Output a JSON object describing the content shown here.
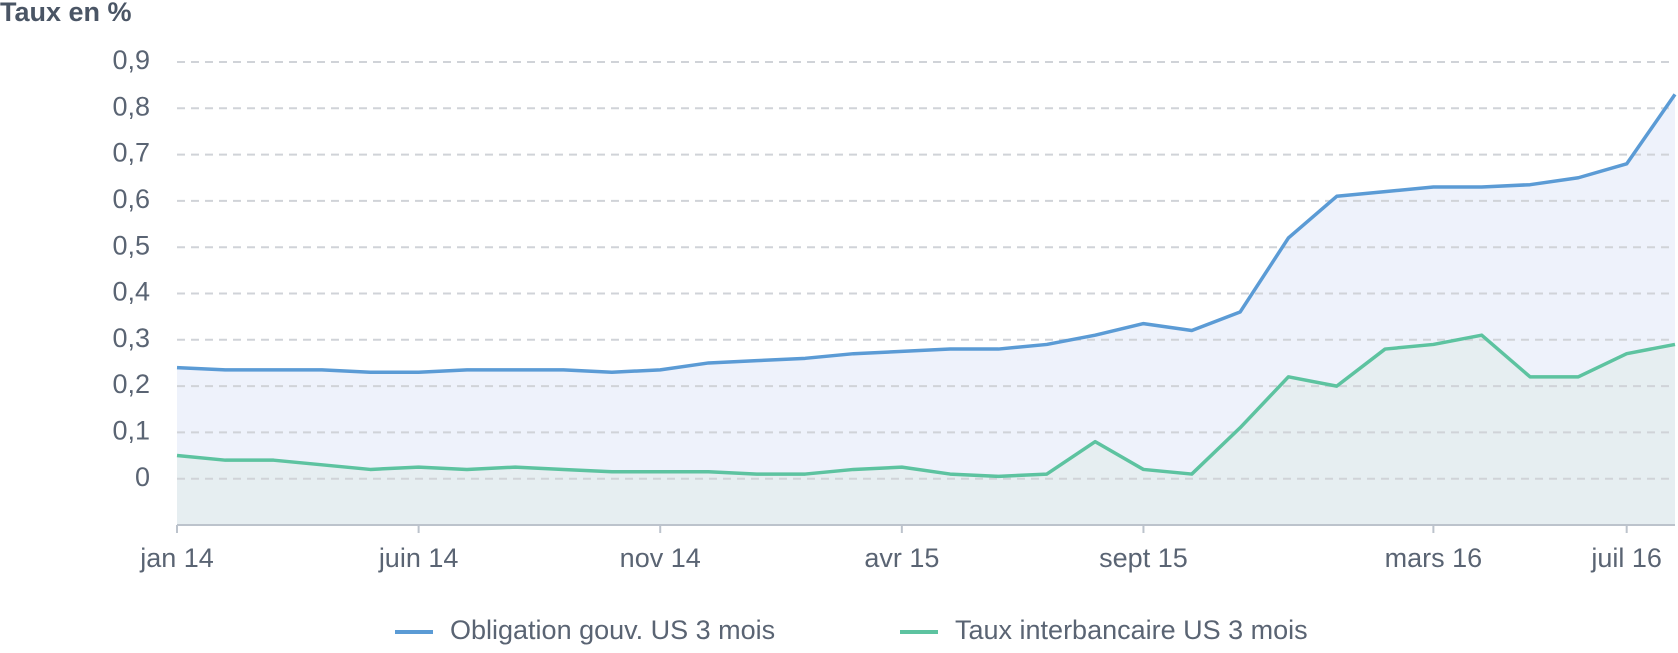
{
  "chart_data": {
    "type": "line",
    "y_label": "Taux en %",
    "x": [
      "2014-01",
      "2014-02",
      "2014-03",
      "2014-04",
      "2014-05",
      "2014-06",
      "2014-07",
      "2014-08",
      "2014-09",
      "2014-10",
      "2014-11",
      "2014-12",
      "2015-01",
      "2015-02",
      "2015-03",
      "2015-04",
      "2015-05",
      "2015-06",
      "2015-07",
      "2015-08",
      "2015-09",
      "2015-10",
      "2015-11",
      "2015-12",
      "2016-01",
      "2016-02",
      "2016-03",
      "2016-04",
      "2016-05",
      "2016-06",
      "2016-07",
      "2016-08"
    ],
    "series": [
      {
        "name": "Obligation gouv. US 3 mois",
        "color": "#5b9bd5",
        "area_color": "#eef2fb",
        "values": [
          0.24,
          0.235,
          0.235,
          0.235,
          0.23,
          0.23,
          0.235,
          0.235,
          0.235,
          0.23,
          0.235,
          0.25,
          0.255,
          0.26,
          0.27,
          0.275,
          0.28,
          0.28,
          0.29,
          0.31,
          0.335,
          0.32,
          0.36,
          0.52,
          0.61,
          0.62,
          0.63,
          0.63,
          0.635,
          0.65,
          0.68,
          0.83
        ]
      },
      {
        "name": "Taux interbancaire US 3 mois",
        "color": "#5dc3a0",
        "area_color": "#e4ecef",
        "values": [
          0.05,
          0.04,
          0.04,
          0.03,
          0.02,
          0.025,
          0.02,
          0.025,
          0.02,
          0.015,
          0.015,
          0.015,
          0.01,
          0.01,
          0.02,
          0.025,
          0.01,
          0.005,
          0.01,
          0.08,
          0.02,
          0.01,
          0.11,
          0.22,
          0.2,
          0.28,
          0.29,
          0.31,
          0.22,
          0.22,
          0.27,
          0.29
        ]
      }
    ],
    "xlim": [
      "2014-01",
      "2016-08"
    ],
    "xticks": [
      {
        "value": "2014-01",
        "label": "jan 14"
      },
      {
        "value": "2014-06",
        "label": "juin 14"
      },
      {
        "value": "2014-11",
        "label": "nov 14"
      },
      {
        "value": "2015-04",
        "label": "avr 15"
      },
      {
        "value": "2015-09",
        "label": "sept 15"
      },
      {
        "value": "2016-03",
        "label": "mars 16"
      },
      {
        "value": "2016-07",
        "label": "juil 16"
      }
    ],
    "ylim": [
      -0.1,
      0.9
    ],
    "yticks": [
      0,
      {
        "value": 0.1,
        "label": "0,1"
      },
      {
        "value": 0.2,
        "label": "0,2"
      },
      {
        "value": 0.3,
        "label": "0,3"
      },
      {
        "value": 0.4,
        "label": "0,4"
      },
      {
        "value": 0.5,
        "label": "0,5"
      },
      {
        "value": 0.6,
        "label": "0,6"
      },
      {
        "value": 0.7,
        "label": "0,7"
      },
      {
        "value": 0.8,
        "label": "0,8"
      },
      {
        "value": 0.9,
        "label": "0,9"
      }
    ],
    "grid": true,
    "legend": "bottom"
  }
}
